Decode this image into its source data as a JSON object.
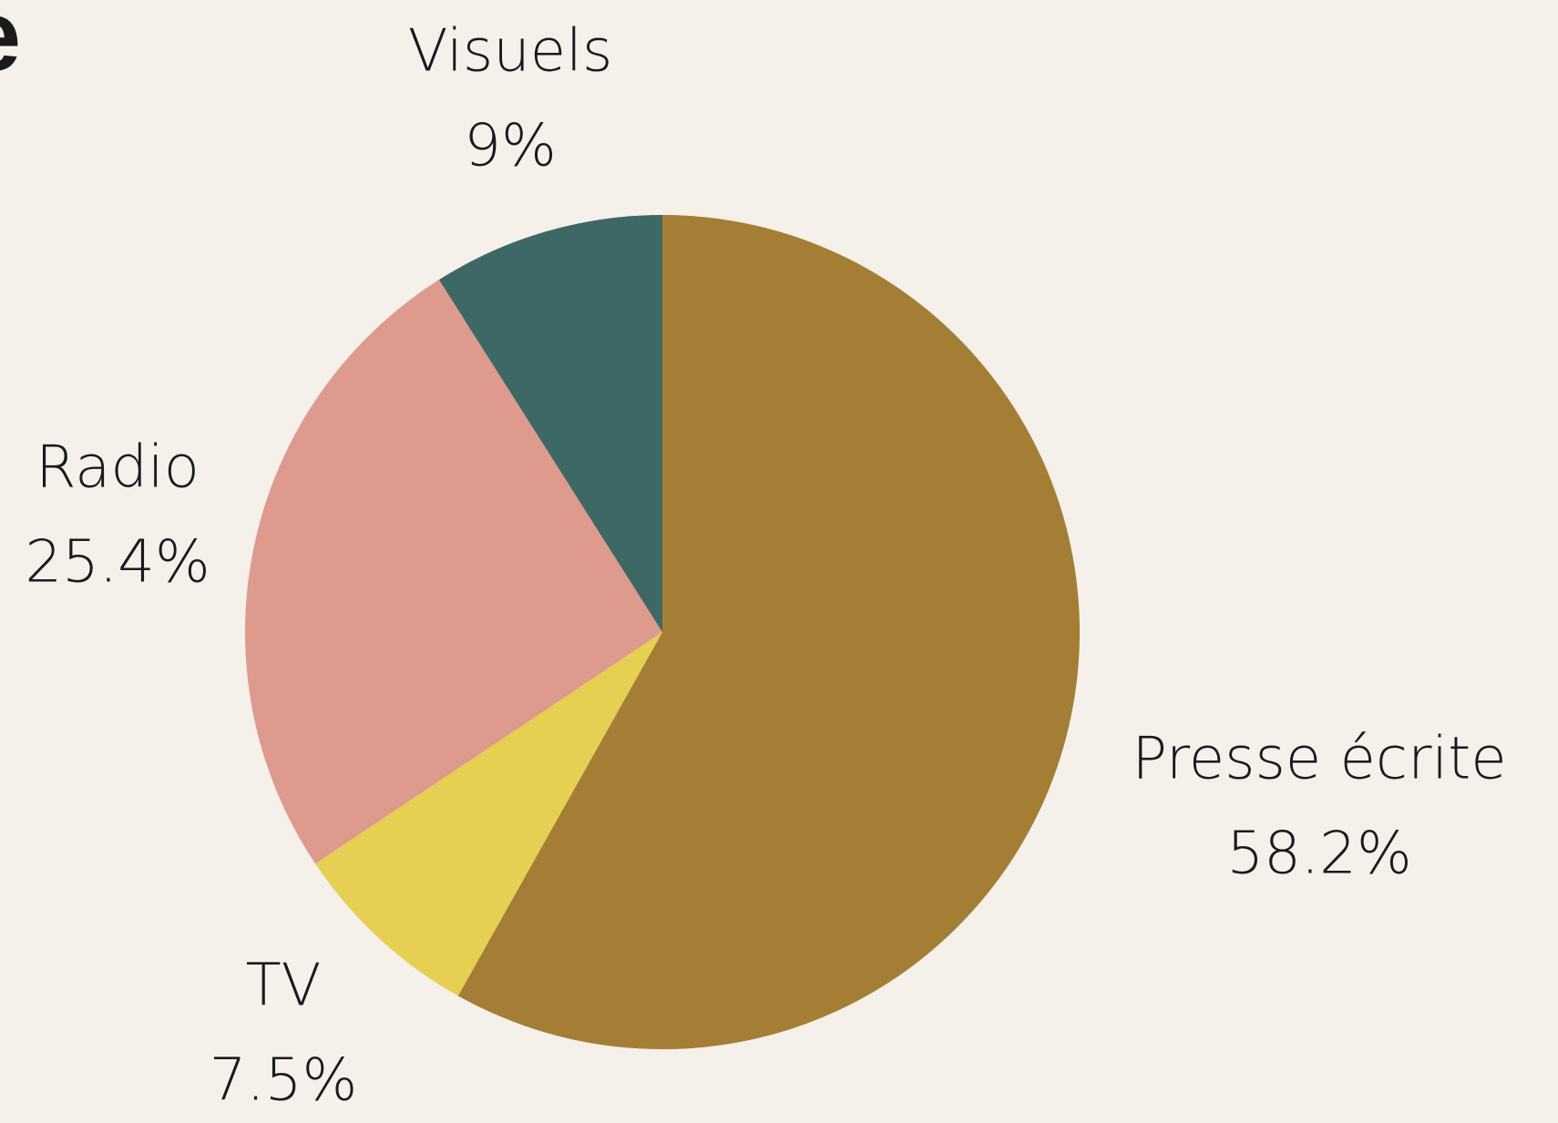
{
  "title": "e",
  "chart_data": {
    "type": "pie",
    "categories": [
      "Presse écrite",
      "TV",
      "Radio",
      "Visuels"
    ],
    "values": [
      58.2,
      7.5,
      25.4,
      9
    ],
    "value_labels": [
      "58.2%",
      "7.5%",
      "25.4%",
      "9%"
    ],
    "colors": [
      "#a47e34",
      "#e6cf53",
      "#dd9a8d",
      "#3e6865"
    ]
  }
}
